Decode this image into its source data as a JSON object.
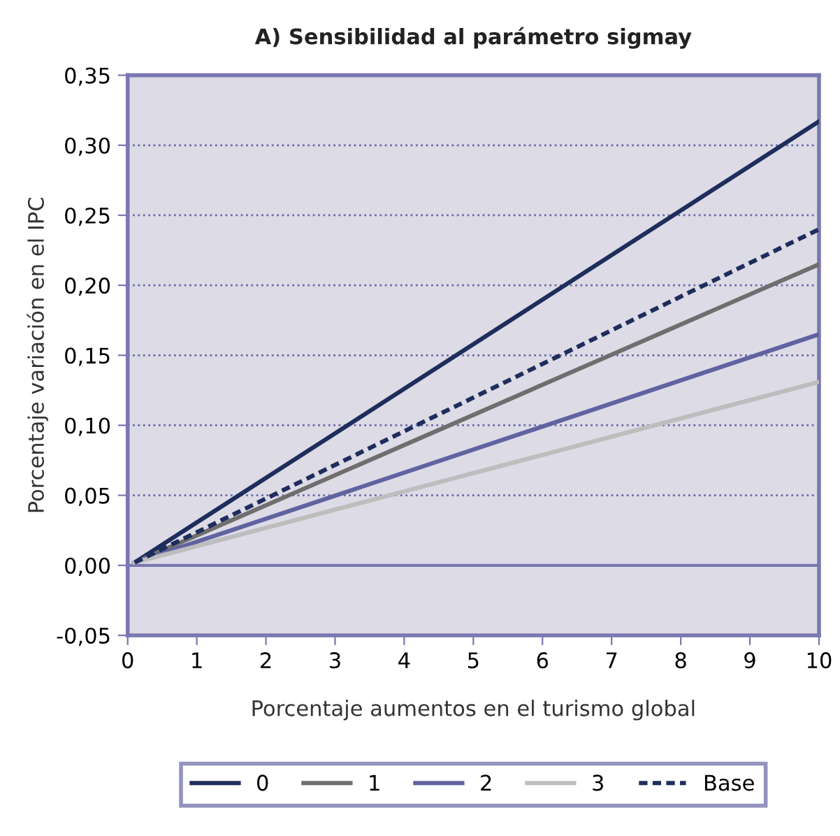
{
  "chart_data": {
    "type": "line",
    "title": "A) Sensibilidad al parámetro sigmay",
    "xlabel": "Porcentaje aumentos en el turismo global",
    "ylabel": "Porcentaje variación en el IPC",
    "x": [
      0.1,
      10
    ],
    "series": [
      {
        "name": "0",
        "color": "#1f2d5c",
        "values": [
          0.002,
          0.317
        ],
        "line_style": "solid"
      },
      {
        "name": "1",
        "color": "#6e6e6e",
        "values": [
          0.002,
          0.215
        ],
        "line_style": "solid"
      },
      {
        "name": "2",
        "color": "#6163a0",
        "values": [
          0.002,
          0.165
        ],
        "line_style": "solid"
      },
      {
        "name": "3",
        "color": "#bdbdbd",
        "values": [
          0.002,
          0.131
        ],
        "line_style": "solid"
      },
      {
        "name": "Base",
        "color": "#1f2d5c",
        "values": [
          0.002,
          0.24
        ],
        "line_style": "dashed"
      }
    ],
    "xlim": [
      0,
      10
    ],
    "xticks": [
      0,
      1,
      2,
      3,
      4,
      5,
      6,
      7,
      8,
      9,
      10
    ],
    "ylim": [
      -0.05,
      0.35
    ],
    "yticks": [
      {
        "value": -0.05,
        "label": "-0,05"
      },
      {
        "value": 0,
        "label": "0,00"
      },
      {
        "value": 0.05,
        "label": "0,05"
      },
      {
        "value": 0.1,
        "label": "0,10"
      },
      {
        "value": 0.15,
        "label": "0,15"
      },
      {
        "value": 0.2,
        "label": "0,20"
      },
      {
        "value": 0.25,
        "label": "0,25"
      },
      {
        "value": 0.3,
        "label": "0,30"
      },
      {
        "value": 0.35,
        "label": "0,35"
      }
    ],
    "ref_lines": [
      {
        "axis": "y",
        "value": 0,
        "color": "#7a78b0"
      }
    ],
    "grid": "y",
    "legend": "bottom",
    "marker": "none"
  }
}
